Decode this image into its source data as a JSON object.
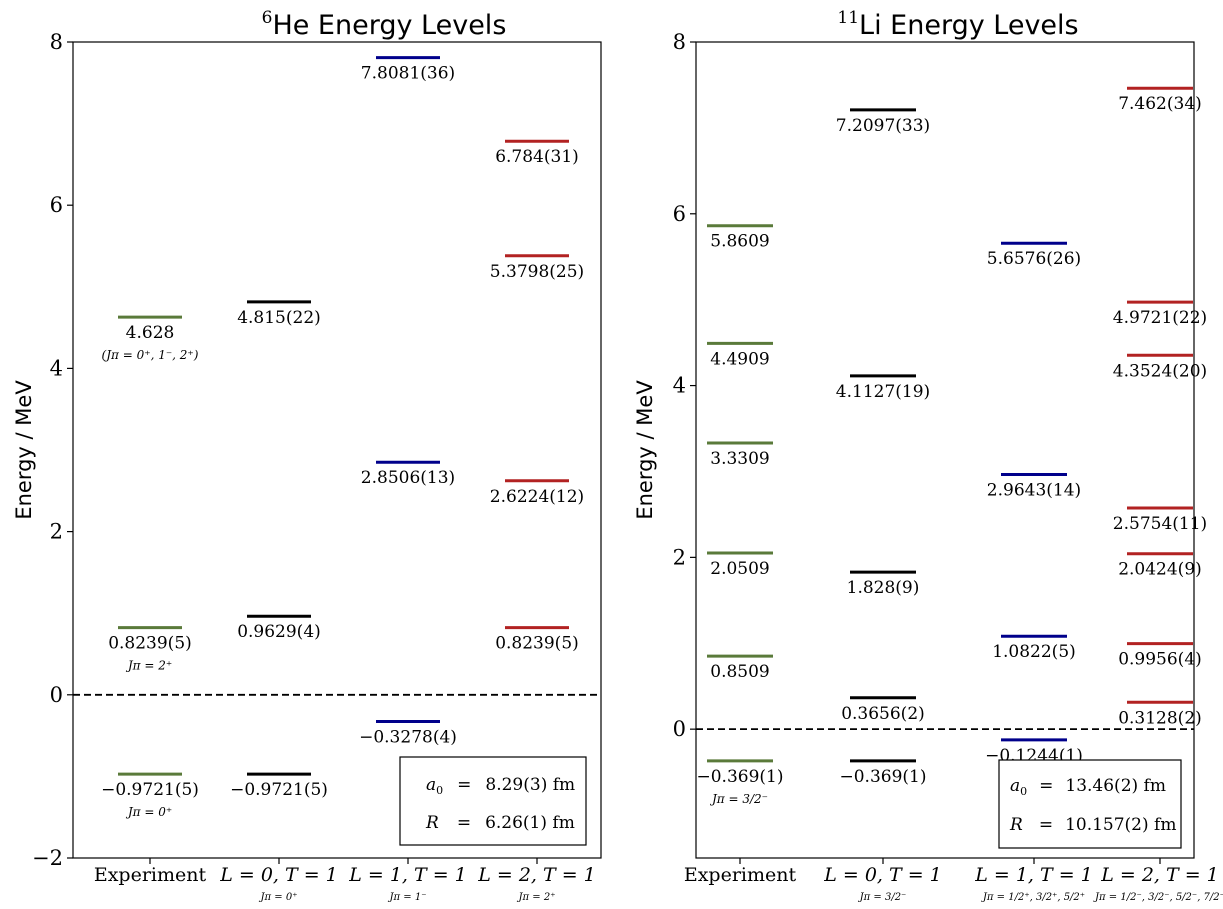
{
  "colors": {
    "experiment": "#5a7a3a",
    "L0": "#000000",
    "L1": "#00008b",
    "L2": "#b22222"
  },
  "chart_data": [
    {
      "type": "energy-level",
      "title_sup": "6",
      "title": "He Energy Levels",
      "ylabel": "Energy / MeV",
      "ylim": [
        -2,
        8
      ],
      "yticks": [
        "−2",
        "0",
        "2",
        "4",
        "6",
        "8"
      ],
      "ytick_values": [
        -2,
        0,
        2,
        4,
        6,
        8
      ],
      "threshold": 0,
      "columns": [
        {
          "label": "Experiment",
          "sublabel": "",
          "color": "experiment",
          "levels": [
            {
              "y": 4.628,
              "label": "4.628",
              "note": "(Jπ = 0⁺, 1⁻, 2⁺)"
            },
            {
              "y": 0.8239,
              "label": "0.8239(5)",
              "note": "Jπ = 2⁺"
            },
            {
              "y": -0.9721,
              "label": "−0.9721(5)",
              "note": "Jπ = 0⁺"
            }
          ]
        },
        {
          "label": "L = 0, T = 1",
          "sublabel": "Jπ = 0⁺",
          "color": "L0",
          "levels": [
            {
              "y": 4.815,
              "label": "4.815(22)"
            },
            {
              "y": 0.9629,
              "label": "0.9629(4)"
            },
            {
              "y": -0.9721,
              "label": "−0.9721(5)"
            }
          ]
        },
        {
          "label": "L = 1, T = 1",
          "sublabel": "Jπ = 1⁻",
          "color": "L1",
          "levels": [
            {
              "y": 7.8081,
              "label": "7.8081(36)"
            },
            {
              "y": 2.8506,
              "label": "2.8506(13)"
            },
            {
              "y": -0.3278,
              "label": "−0.3278(4)"
            }
          ]
        },
        {
          "label": "L = 2, T = 1",
          "sublabel": "Jπ = 2⁺",
          "color": "L2",
          "levels": [
            {
              "y": 6.784,
              "label": "6.784(31)"
            },
            {
              "y": 5.3798,
              "label": "5.3798(25)"
            },
            {
              "y": 2.6224,
              "label": "2.6224(12)"
            },
            {
              "y": 0.8239,
              "label": "0.8239(5)"
            }
          ]
        }
      ],
      "params": [
        {
          "name": "a0",
          "value": "8.29(3) fm"
        },
        {
          "name": "R",
          "value": "6.26(1) fm"
        }
      ]
    },
    {
      "type": "energy-level",
      "title_sup": "11",
      "title": "Li Energy Levels",
      "ylabel": "Energy / MeV",
      "ylim": [
        -1.5,
        8
      ],
      "yticks": [
        "0",
        "2",
        "4",
        "6",
        "8"
      ],
      "ytick_values": [
        0,
        2,
        4,
        6,
        8
      ],
      "threshold": 0,
      "columns": [
        {
          "label": "Experiment",
          "sublabel": "",
          "color": "experiment",
          "levels": [
            {
              "y": 5.8609,
              "label": "5.8609"
            },
            {
              "y": 4.4909,
              "label": "4.4909"
            },
            {
              "y": 3.3309,
              "label": "3.3309"
            },
            {
              "y": 2.0509,
              "label": "2.0509"
            },
            {
              "y": 0.8509,
              "label": "0.8509"
            },
            {
              "y": -0.369,
              "label": "−0.369(1)",
              "note": "Jπ = 3/2⁻"
            }
          ]
        },
        {
          "label": "L = 0, T = 1",
          "sublabel": "Jπ = 3/2⁻",
          "color": "L0",
          "levels": [
            {
              "y": 7.2097,
              "label": "7.2097(33)"
            },
            {
              "y": 4.1127,
              "label": "4.1127(19)"
            },
            {
              "y": 1.828,
              "label": "1.828(9)"
            },
            {
              "y": 0.3656,
              "label": "0.3656(2)"
            },
            {
              "y": -0.369,
              "label": "−0.369(1)"
            }
          ]
        },
        {
          "label": "L = 1, T = 1",
          "sublabel": "Jπ = 1/2⁺, 3/2⁺, 5/2⁺",
          "color": "L1",
          "levels": [
            {
              "y": 5.6576,
              "label": "5.6576(26)"
            },
            {
              "y": 2.9643,
              "label": "2.9643(14)"
            },
            {
              "y": 1.0822,
              "label": "1.0822(5)"
            },
            {
              "y": -0.1244,
              "label": "−0.1244(1)"
            }
          ]
        },
        {
          "label": "L = 2, T = 1",
          "sublabel": "Jπ = 1/2⁻, 3/2⁻, 5/2⁻, 7/2⁻",
          "color": "L2",
          "levels": [
            {
              "y": 7.462,
              "label": "7.462(34)"
            },
            {
              "y": 4.9721,
              "label": "4.9721(22)"
            },
            {
              "y": 4.3524,
              "label": "4.3524(20)"
            },
            {
              "y": 2.5754,
              "label": "2.5754(11)"
            },
            {
              "y": 2.0424,
              "label": "2.0424(9)"
            },
            {
              "y": 0.9956,
              "label": "0.9956(4)"
            },
            {
              "y": 0.3128,
              "label": "0.3128(2)"
            }
          ]
        }
      ],
      "params": [
        {
          "name": "a0",
          "value": "13.46(2) fm"
        },
        {
          "name": "R",
          "value": "10.157(2) fm"
        }
      ]
    }
  ]
}
